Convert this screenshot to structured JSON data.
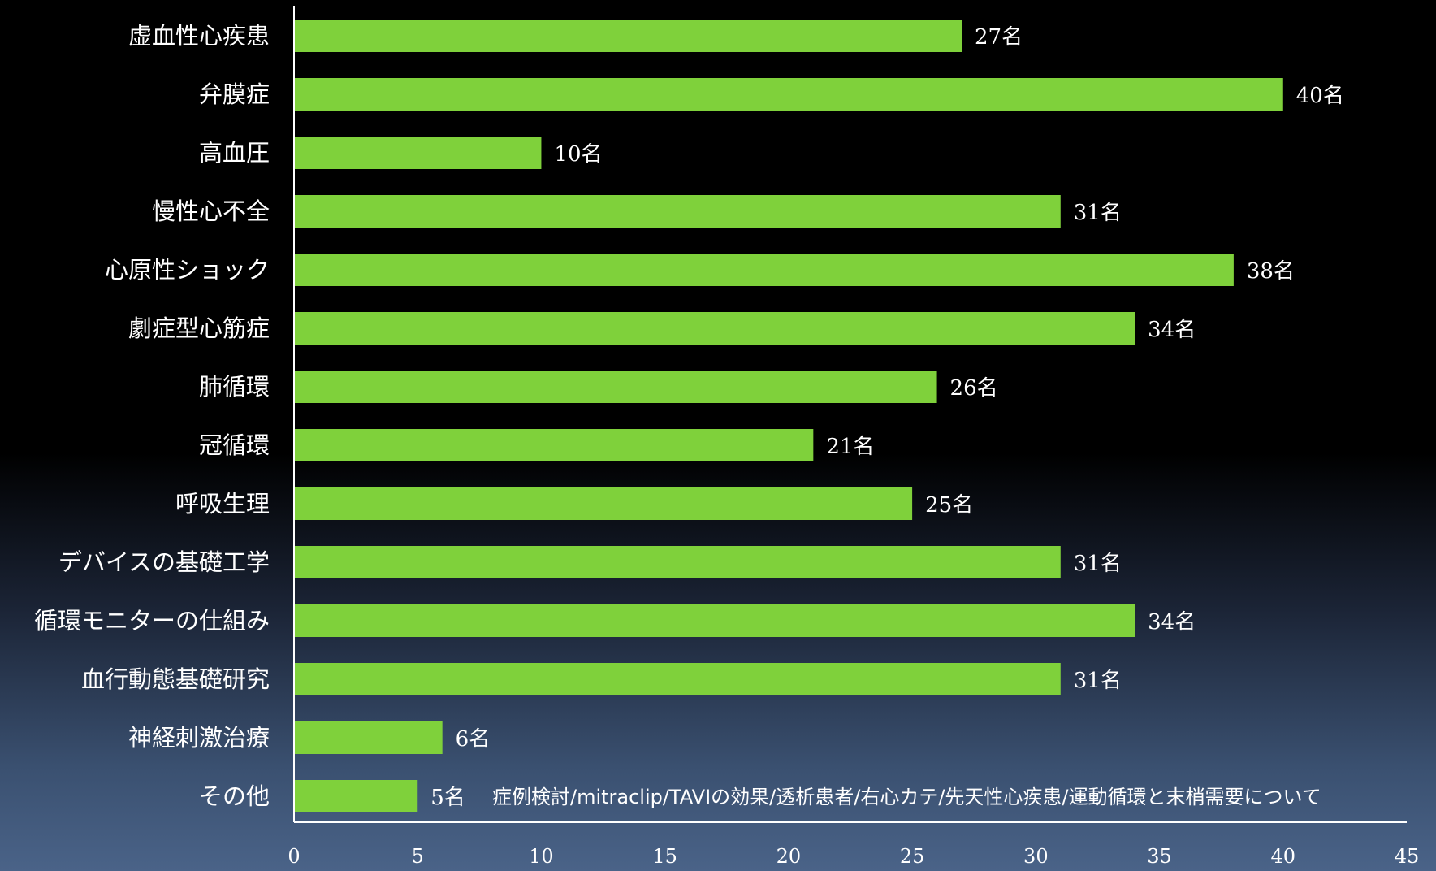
{
  "chart_data": {
    "type": "bar",
    "orientation": "horizontal",
    "categories": [
      "虚血性心疾患",
      "弁膜症",
      "高血圧",
      "慢性心不全",
      "心原性ショック",
      "劇症型心筋症",
      "肺循環",
      "冠循環",
      "呼吸生理",
      "デバイスの基礎工学",
      "循環モニターの仕組み",
      "血行動態基礎研究",
      "神経刺激治療",
      "その他"
    ],
    "values": [
      27,
      40,
      10,
      31,
      38,
      34,
      26,
      21,
      25,
      31,
      34,
      31,
      6,
      5
    ],
    "value_labels": [
      "27名",
      "40名",
      "10名",
      "31名",
      "38名",
      "34名",
      "26名",
      "21名",
      "25名",
      "31名",
      "34名",
      "31名",
      "6名",
      "5名"
    ],
    "xlim": [
      0,
      45
    ],
    "x_ticks": [
      "0",
      "5",
      "10",
      "15",
      "20",
      "25",
      "30",
      "35",
      "40",
      "45"
    ],
    "grid": false,
    "colors": {
      "bar": "#7fd13b",
      "axis": "#ffffff",
      "text": "#ffffff"
    },
    "annotation": "症例検討/mitraclip/TAVIの効果/透析患者/右心カテ/先天性心疾患/運動循環と末梢需要について"
  }
}
